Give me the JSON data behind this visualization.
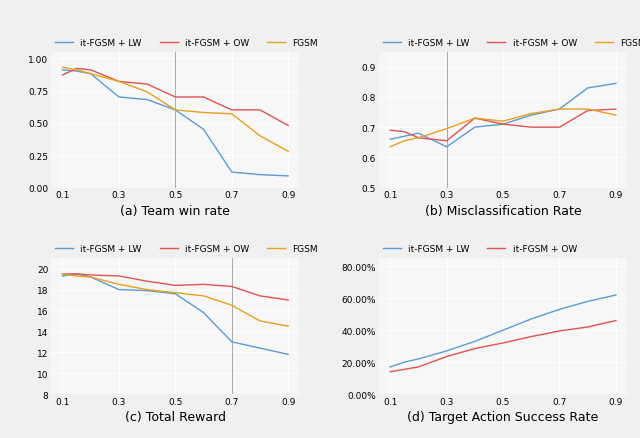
{
  "x": [
    0.1,
    0.15,
    0.2,
    0.3,
    0.4,
    0.5,
    0.6,
    0.7,
    0.8,
    0.9
  ],
  "a_lw": [
    0.91,
    0.9,
    0.88,
    0.7,
    0.68,
    0.6,
    0.45,
    0.12,
    0.1,
    0.09
  ],
  "a_ow": [
    0.87,
    0.92,
    0.91,
    0.82,
    0.8,
    0.7,
    0.7,
    0.6,
    0.6,
    0.48
  ],
  "a_fgsm": [
    0.93,
    0.91,
    0.88,
    0.82,
    0.74,
    0.6,
    0.58,
    0.57,
    0.4,
    0.28
  ],
  "b_lw": [
    0.66,
    0.67,
    0.68,
    0.635,
    0.7,
    0.71,
    0.74,
    0.76,
    0.83,
    0.845
  ],
  "b_ow": [
    0.69,
    0.685,
    0.665,
    0.655,
    0.73,
    0.71,
    0.7,
    0.7,
    0.755,
    0.76
  ],
  "b_fgsm": [
    0.635,
    0.655,
    0.665,
    0.695,
    0.73,
    0.72,
    0.745,
    0.76,
    0.76,
    0.74
  ],
  "c_lw": [
    19.3,
    19.5,
    19.2,
    18.0,
    17.9,
    17.6,
    15.8,
    13.0,
    12.4,
    11.8
  ],
  "c_ow": [
    19.5,
    19.5,
    19.4,
    19.3,
    18.8,
    18.4,
    18.5,
    18.3,
    17.4,
    17.0
  ],
  "c_fgsm": [
    19.5,
    19.3,
    19.2,
    18.5,
    18.0,
    17.7,
    17.4,
    16.5,
    15.0,
    14.5
  ],
  "d_lw": [
    0.17,
    0.2,
    0.22,
    0.27,
    0.33,
    0.4,
    0.47,
    0.53,
    0.58,
    0.62
  ],
  "d_ow": [
    0.14,
    0.155,
    0.17,
    0.235,
    0.285,
    0.32,
    0.36,
    0.395,
    0.42,
    0.46
  ],
  "color_lw": "#5b9bd5",
  "color_ow": "#e05252",
  "color_fgsm": "#e8a020",
  "title_a": "(a) Team win rate",
  "title_b": "(b) Misclassification Rate",
  "title_c": "(c) Total Reward",
  "title_d": "(d) Target Action Success Rate",
  "label_lw": "it-FGSM + LW",
  "label_ow": "it-FGSM + OW",
  "label_fgsm": "FGSM",
  "legend_fontsize": 6.5,
  "caption_fontsize": 9,
  "tick_fontsize": 6.5,
  "a_ylim": [
    0.0,
    1.05
  ],
  "a_yticks": [
    0.0,
    0.25,
    0.5,
    0.75,
    1.0
  ],
  "b_ylim": [
    0.5,
    0.95
  ],
  "b_yticks": [
    0.5,
    0.6,
    0.7,
    0.8,
    0.9
  ],
  "c_ylim": [
    8,
    21
  ],
  "c_yticks": [
    8,
    10,
    12,
    14,
    16,
    18,
    20
  ],
  "d_ylim": [
    0.0,
    0.85
  ],
  "d_yticks": [
    0.0,
    0.2,
    0.4,
    0.6,
    0.8
  ],
  "xticks": [
    0.1,
    0.3,
    0.5,
    0.7,
    0.9
  ],
  "vline_a": 0.5,
  "vline_b": 0.3,
  "vline_c": 0.7,
  "bg_color": "#f7f7f7",
  "grid_color": "#ffffff",
  "fig_bg": "#f0f0f0",
  "line_width": 1.0
}
